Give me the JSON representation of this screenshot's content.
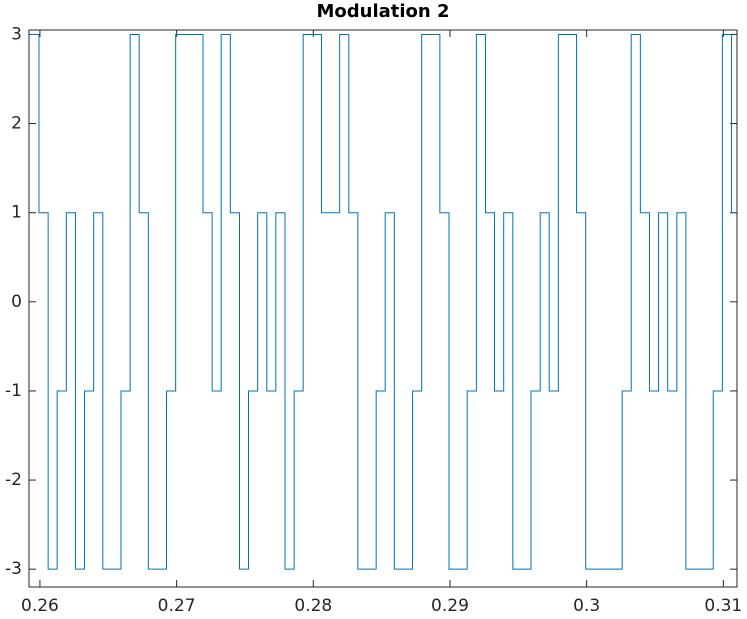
{
  "chart_data": {
    "type": "line",
    "title": "Modulation 2",
    "x": [
      0.2592,
      0.25993,
      0.25993,
      0.2606,
      0.2606,
      0.26126,
      0.26126,
      0.26193,
      0.26193,
      0.2626,
      0.2626,
      0.26326,
      0.26326,
      0.26393,
      0.26393,
      0.2646,
      0.2646,
      0.26593,
      0.26593,
      0.2666,
      0.2666,
      0.26726,
      0.26726,
      0.26793,
      0.26793,
      0.26926,
      0.26926,
      0.26993,
      0.26993,
      0.27193,
      0.27193,
      0.2726,
      0.2726,
      0.27326,
      0.27326,
      0.27393,
      0.27393,
      0.2746,
      0.2746,
      0.27526,
      0.27526,
      0.27593,
      0.27593,
      0.2766,
      0.2766,
      0.27726,
      0.27726,
      0.27793,
      0.27793,
      0.2786,
      0.2786,
      0.27926,
      0.27926,
      0.2806,
      0.2806,
      0.28193,
      0.28193,
      0.2826,
      0.2826,
      0.28326,
      0.28326,
      0.2846,
      0.2846,
      0.28526,
      0.28526,
      0.28593,
      0.28593,
      0.28726,
      0.28726,
      0.28793,
      0.28793,
      0.28926,
      0.28926,
      0.28993,
      0.28993,
      0.29126,
      0.29126,
      0.29193,
      0.29193,
      0.2926,
      0.2926,
      0.29326,
      0.29326,
      0.29393,
      0.29393,
      0.2946,
      0.2946,
      0.29593,
      0.29593,
      0.2966,
      0.2966,
      0.29726,
      0.29726,
      0.29793,
      0.29793,
      0.29926,
      0.29926,
      0.29993,
      0.29993,
      0.3026,
      0.3026,
      0.30326,
      0.30326,
      0.30393,
      0.30393,
      0.3046,
      0.3046,
      0.30526,
      0.30526,
      0.30593,
      0.30593,
      0.3066,
      0.3066,
      0.30726,
      0.30726,
      0.30926,
      0.30926,
      0.30993,
      0.30993,
      0.3106,
      0.3106,
      0.311
    ],
    "values": [
      3,
      3,
      1,
      1,
      -3,
      -3,
      -1,
      -1,
      1,
      1,
      -3,
      -3,
      -1,
      -1,
      1,
      1,
      -3,
      -3,
      -1,
      -1,
      3,
      3,
      1,
      1,
      -3,
      -3,
      -1,
      -1,
      3,
      3,
      1,
      1,
      -1,
      -1,
      3,
      3,
      1,
      1,
      -3,
      -3,
      -1,
      -1,
      1,
      1,
      -1,
      -1,
      1,
      1,
      -3,
      -3,
      -1,
      -1,
      3,
      3,
      1,
      1,
      3,
      3,
      1,
      1,
      -3,
      -3,
      -1,
      -1,
      1,
      1,
      -3,
      -3,
      -1,
      -1,
      3,
      3,
      1,
      1,
      -3,
      -3,
      -1,
      -1,
      3,
      3,
      1,
      1,
      -1,
      -1,
      1,
      1,
      -3,
      -3,
      -1,
      -1,
      1,
      1,
      -1,
      -1,
      3,
      3,
      1,
      1,
      -3,
      -3,
      -1,
      -1,
      3,
      3,
      1,
      1,
      -1,
      -1,
      1,
      1,
      -1,
      -1,
      1,
      1,
      -3,
      -3,
      -1,
      -1,
      3,
      3,
      1,
      1
    ],
    "color": "#0072bd",
    "xlim": [
      0.2592,
      0.311
    ],
    "xticks": [
      0.26,
      0.27,
      0.28,
      0.29,
      0.3,
      0.31
    ],
    "ylim": [
      -3.2,
      3.05
    ],
    "yticks": [
      -3,
      -2,
      -1,
      0,
      1,
      2,
      3
    ],
    "grid": false
  }
}
